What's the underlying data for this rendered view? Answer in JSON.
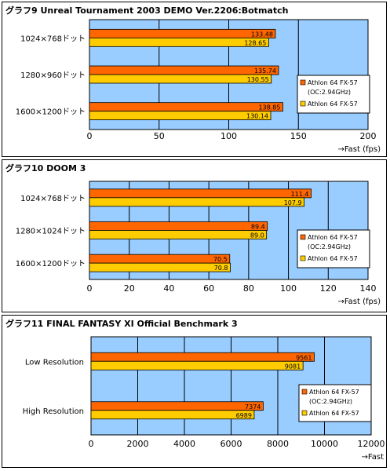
{
  "chart_data": [
    {
      "type": "bar",
      "title": "グラフ9  Unreal Tournament 2003 DEMO Ver.2206:Botmatch",
      "categories": [
        "1024×768ドット",
        "1280×960ドット",
        "1600×1200ドット"
      ],
      "series": [
        {
          "name": "Athlon 64 FX-57 (OC:2.94GHz)",
          "values": [
            133.48,
            135.74,
            138.85
          ],
          "labels": [
            "133.48",
            "135.74",
            "138.85"
          ]
        },
        {
          "name": "Athlon 64 FX-57",
          "values": [
            128.65,
            130.55,
            130.14
          ],
          "labels": [
            "128.65",
            "130.55",
            "130.14"
          ]
        }
      ],
      "xlim": [
        0,
        200
      ],
      "xticks": [
        "0",
        "50",
        "100",
        "150",
        "200"
      ],
      "xlabel": "→Fast (fps)",
      "legend": {
        "series1_line1": "Athlon 64 FX-57",
        "series1_line2": "(OC:2.94GHz)",
        "series2": "Athlon 64 FX-57"
      }
    },
    {
      "type": "bar",
      "title": "グラフ10  DOOM 3",
      "categories": [
        "1024×768ドット",
        "1280×1024ドット",
        "1600×1200ドット"
      ],
      "series": [
        {
          "name": "Athlon 64 FX-57 (OC:2.94GHz)",
          "values": [
            111.4,
            89.4,
            70.5
          ],
          "labels": [
            "111.4",
            "89.4",
            "70.5"
          ]
        },
        {
          "name": "Athlon 64 FX-57",
          "values": [
            107.9,
            89.0,
            70.8
          ],
          "labels": [
            "107.9",
            "89.0",
            "70.8"
          ]
        }
      ],
      "xlim": [
        0,
        140
      ],
      "xticks": [
        "0",
        "20",
        "40",
        "60",
        "80",
        "100",
        "120",
        "140"
      ],
      "xlabel": "→Fast (fps)",
      "legend": {
        "series1_line1": "Athlon 64 FX-57",
        "series1_line2": "(OC:2.94GHz)",
        "series2": "Athlon 64 FX-57"
      }
    },
    {
      "type": "bar",
      "title": "グラフ11  FINAL FANTASY XI Official Benchmark 3",
      "categories": [
        "Low Resolution",
        "High Resolution"
      ],
      "series": [
        {
          "name": "Athlon 64 FX-57 (OC:2.94GHz)",
          "values": [
            9561,
            7374
          ],
          "labels": [
            "9561",
            "7374"
          ]
        },
        {
          "name": "Athlon 64 FX-57",
          "values": [
            9081,
            6989
          ],
          "labels": [
            "9081",
            "6989"
          ]
        }
      ],
      "xlim": [
        0,
        12000
      ],
      "xticks": [
        "0",
        "2000",
        "4000",
        "6000",
        "8000",
        "10000",
        "12000"
      ],
      "xlabel": "→Fast",
      "legend": {
        "series1_line1": "Athlon 64 FX-57",
        "series1_line2": "(OC:2.94GHz)",
        "series2": "Athlon 64 FX-57"
      }
    }
  ],
  "colors": {
    "series1": "#ff6600",
    "series2": "#ffcc00",
    "plot_bg": "#99ccff",
    "grid": "#000000"
  }
}
